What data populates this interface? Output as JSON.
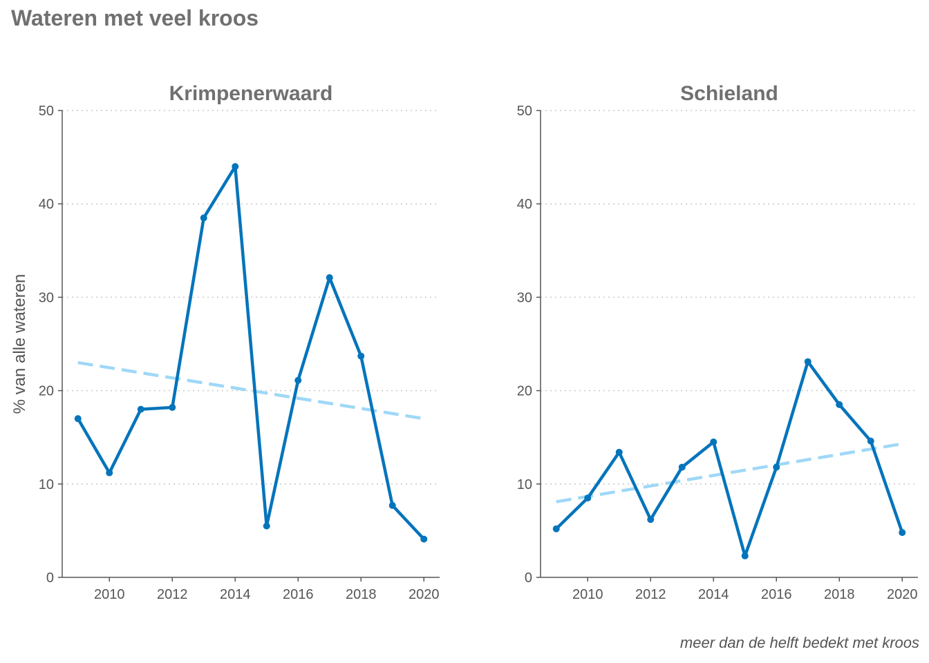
{
  "title": "Wateren met veel kroos",
  "caption": "meer dan de helft bedekt met kroos",
  "colors": {
    "line": "#0474bb",
    "trend": "#9fd8f7",
    "axis": "#555555",
    "grid": "#c8c8c8",
    "title": "#707070"
  },
  "chart_data": [
    {
      "type": "line",
      "title": "Krimpenerwaard",
      "ylabel": "% van alle wateren",
      "xlabel": "",
      "xlim": [
        2008.5,
        2020.5
      ],
      "ylim": [
        0,
        50
      ],
      "yticks": [
        0,
        10,
        20,
        30,
        40,
        50
      ],
      "xticks": [
        2010,
        2012,
        2014,
        2016,
        2018,
        2020
      ],
      "grid": "horizontal dotted",
      "x": [
        2009,
        2010,
        2011,
        2012,
        2013,
        2014,
        2015,
        2016,
        2017,
        2018,
        2019,
        2020
      ],
      "y": [
        17.0,
        11.2,
        18.0,
        18.2,
        38.5,
        44.0,
        5.5,
        21.1,
        32.1,
        23.7,
        7.7,
        4.1
      ],
      "trend": {
        "x": [
          2009,
          2020
        ],
        "y": [
          23.0,
          17.0
        ],
        "style": "dashed"
      }
    },
    {
      "type": "line",
      "title": "Schieland",
      "ylabel": "",
      "xlabel": "",
      "xlim": [
        2008.5,
        2020.5
      ],
      "ylim": [
        0,
        50
      ],
      "yticks": [
        0,
        10,
        20,
        30,
        40,
        50
      ],
      "xticks": [
        2010,
        2012,
        2014,
        2016,
        2018,
        2020
      ],
      "grid": "horizontal dotted",
      "x": [
        2009,
        2010,
        2011,
        2012,
        2013,
        2014,
        2015,
        2016,
        2017,
        2018,
        2019,
        2020
      ],
      "y": [
        5.2,
        8.5,
        13.4,
        6.2,
        11.8,
        14.5,
        2.3,
        11.8,
        23.1,
        18.5,
        14.6,
        4.8
      ],
      "trend": {
        "x": [
          2009,
          2020
        ],
        "y": [
          8.1,
          14.3
        ],
        "style": "dashed"
      }
    }
  ]
}
